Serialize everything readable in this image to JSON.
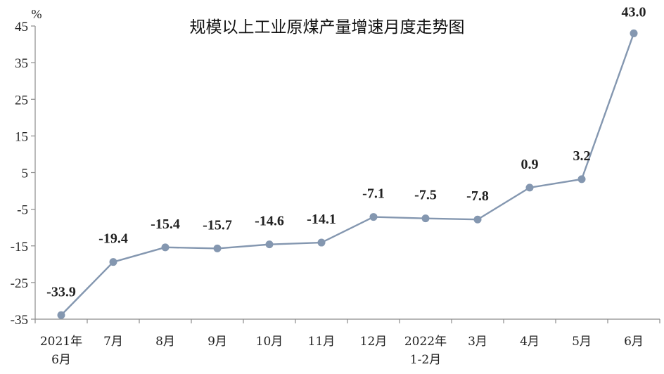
{
  "chart_data": {
    "type": "line",
    "title": "规模以上工业原煤产量增速月度走势图",
    "ylabel": "%",
    "xlabel": "",
    "ylim": [
      -35,
      45
    ],
    "yticks": [
      45,
      35,
      25,
      15,
      5,
      -5,
      -15,
      -25,
      -35
    ],
    "categories": [
      [
        "2021年",
        "6月"
      ],
      [
        "7月"
      ],
      [
        "8月"
      ],
      [
        "9月"
      ],
      [
        "10月"
      ],
      [
        "11月"
      ],
      [
        "12月"
      ],
      [
        "2022年",
        "1-2月"
      ],
      [
        "3月"
      ],
      [
        "4月"
      ],
      [
        "5月"
      ],
      [
        "6月"
      ]
    ],
    "values": [
      -33.9,
      -19.4,
      -15.4,
      -15.7,
      -14.6,
      -14.1,
      -7.1,
      -7.5,
      -7.8,
      0.9,
      3.2,
      43.0
    ],
    "value_labels": [
      "-33.9",
      "-19.4",
      "-15.4",
      "-15.7",
      "-14.6",
      "-14.1",
      "-7.1",
      "-7.5",
      "-7.8",
      "0.9",
      "3.2",
      "43.0"
    ],
    "grid": false,
    "line_color": "#8497b0",
    "marker_color": "#8497b0",
    "axis_color": "#8c8c8c"
  }
}
